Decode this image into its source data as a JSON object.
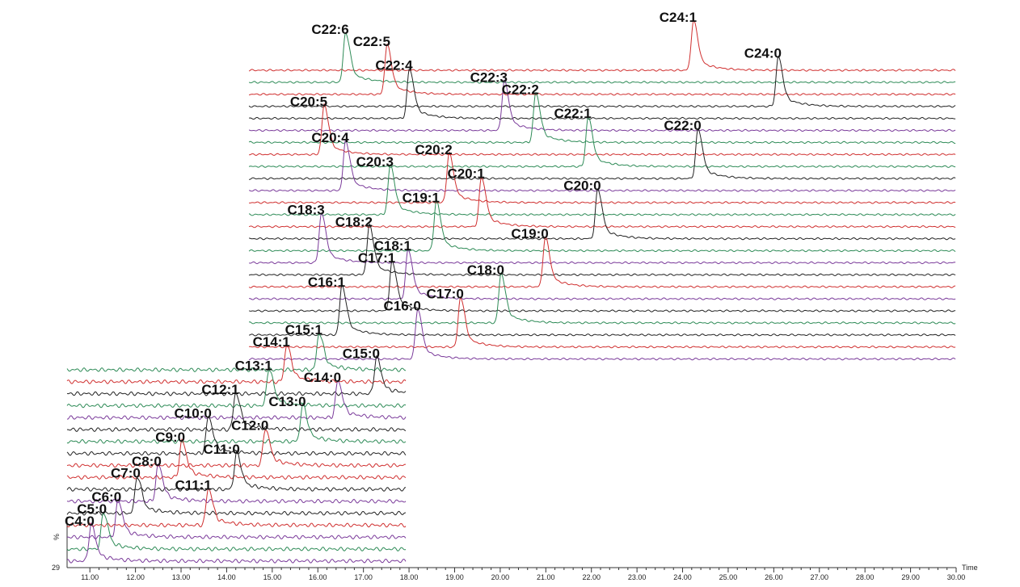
{
  "chart_data": {
    "type": "chromatogram",
    "x_label": "Time",
    "y_label": "%",
    "y_origin": 29,
    "xlim": [
      10.5,
      30
    ],
    "xticks": [
      {
        "value": 11,
        "label": "11.00"
      },
      {
        "value": 12,
        "label": "12.00"
      },
      {
        "value": 13,
        "label": "13.00"
      },
      {
        "value": 14,
        "label": "14.00"
      },
      {
        "value": 15,
        "label": "15.00"
      },
      {
        "value": 16,
        "label": "16.00"
      },
      {
        "value": 17,
        "label": "17.00"
      },
      {
        "value": 18,
        "label": "18.00"
      },
      {
        "value": 19,
        "label": "19.00"
      },
      {
        "value": 20,
        "label": "20.00"
      },
      {
        "value": 21,
        "label": "21.00"
      },
      {
        "value": 22,
        "label": "22.00"
      },
      {
        "value": 23,
        "label": "23.00"
      },
      {
        "value": 24,
        "label": "24.00"
      },
      {
        "value": 25,
        "label": "25.00"
      },
      {
        "value": 26,
        "label": "26.00"
      },
      {
        "value": 27,
        "label": "27.00"
      },
      {
        "value": 28,
        "label": "28.00"
      },
      {
        "value": 29,
        "label": "29.00"
      },
      {
        "value": 30,
        "label": "30.00"
      }
    ],
    "blocks": [
      {
        "xrange": [
          14.49,
          30
        ],
        "traces": [
          {
            "name": "C24:1",
            "x": 24.24,
            "color": "#d03030"
          },
          {
            "name": "C22:6",
            "x": 16.61,
            "color": "#2e8b57"
          },
          {
            "name": "C22:5",
            "x": 17.52,
            "color": "#d03030"
          },
          {
            "name": "C24:0",
            "x": 26.1,
            "color": "#222222"
          },
          {
            "name": "C22:4",
            "x": 18.01,
            "color": "#222222"
          },
          {
            "name": "C22:3",
            "x": 20.09,
            "color": "#7a3a9a"
          },
          {
            "name": "C22:2",
            "x": 20.78,
            "color": "#2e8b57"
          },
          {
            "name": "C20:5",
            "x": 16.14,
            "color": "#d03030"
          },
          {
            "name": "C22:1",
            "x": 21.93,
            "color": "#2e8b57"
          },
          {
            "name": "C22:0",
            "x": 24.34,
            "color": "#222222"
          },
          {
            "name": "C20:4",
            "x": 16.61,
            "color": "#7a3a9a"
          },
          {
            "name": "C20:2",
            "x": 18.88,
            "color": "#d03030"
          },
          {
            "name": "C20:3",
            "x": 17.59,
            "color": "#2e8b57"
          },
          {
            "name": "C20:1",
            "x": 19.59,
            "color": "#d03030"
          },
          {
            "name": "C20:0",
            "x": 22.14,
            "color": "#222222"
          },
          {
            "name": "C19:1",
            "x": 18.6,
            "color": "#2e8b57"
          },
          {
            "name": "C18:3",
            "x": 16.08,
            "color": "#7a3a9a"
          },
          {
            "name": "C18:2",
            "x": 17.13,
            "color": "#222222"
          },
          {
            "name": "C19:0",
            "x": 20.99,
            "color": "#d03030"
          },
          {
            "name": "C18:1",
            "x": 17.98,
            "color": "#7a3a9a"
          },
          {
            "name": "C17:1",
            "x": 17.63,
            "color": "#222222"
          },
          {
            "name": "C18:0",
            "x": 20.02,
            "color": "#2e8b57"
          },
          {
            "name": "C16:1",
            "x": 16.53,
            "color": "#222222"
          },
          {
            "name": "C17:0",
            "x": 19.13,
            "color": "#d03030"
          },
          {
            "name": "C16:0",
            "x": 18.19,
            "color": "#7a3a9a"
          }
        ]
      },
      {
        "xrange": [
          10.5,
          17.94
        ],
        "traces": [
          {
            "name": "C15:1",
            "x": 16.03,
            "color": "#2e8b57"
          },
          {
            "name": "C14:1",
            "x": 15.32,
            "color": "#d03030"
          },
          {
            "name": "C15:0",
            "x": 17.29,
            "color": "#222222"
          },
          {
            "name": "C13:1",
            "x": 14.93,
            "color": "#2e8b57"
          },
          {
            "name": "C14:0",
            "x": 16.44,
            "color": "#7a3a9a"
          },
          {
            "name": "C12:1",
            "x": 14.2,
            "color": "#222222"
          },
          {
            "name": "C13:0",
            "x": 15.67,
            "color": "#2e8b57"
          },
          {
            "name": "C10:0",
            "x": 13.6,
            "color": "#222222"
          },
          {
            "name": "C12:0",
            "x": 14.85,
            "color": "#d03030"
          },
          {
            "name": "C9:0",
            "x": 13.02,
            "color": "#d03030"
          },
          {
            "name": "C11:0",
            "x": 14.22,
            "color": "#222222"
          },
          {
            "name": "C8:0",
            "x": 12.5,
            "color": "#7a3a9a"
          },
          {
            "name": "C7:0",
            "x": 12.04,
            "color": "#222222"
          },
          {
            "name": "C11:1",
            "x": 13.6,
            "color": "#d03030"
          },
          {
            "name": "C6:0",
            "x": 11.62,
            "color": "#7a3a9a"
          },
          {
            "name": "C5:0",
            "x": 11.3,
            "color": "#2e8b57"
          },
          {
            "name": "C4:0",
            "x": 11.03,
            "color": "#7a3a9a"
          }
        ]
      }
    ]
  }
}
